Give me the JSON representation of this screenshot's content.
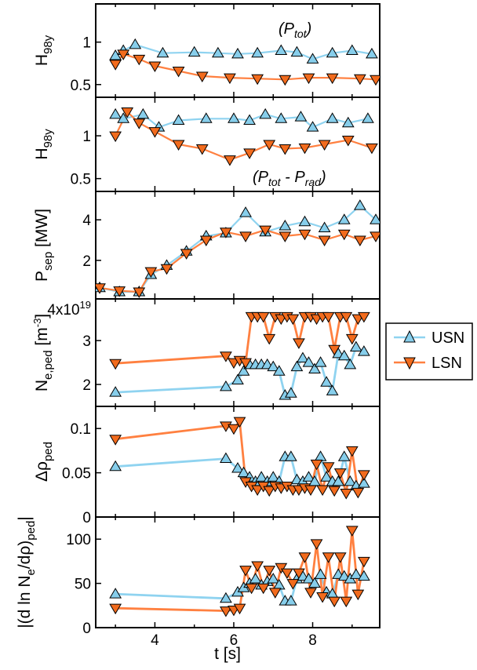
{
  "colors": {
    "usn": "#87ceeb",
    "usn_line": "#8fd3f0",
    "lsn": "#f26b1d",
    "lsn_line": "#ff8040",
    "axis": "#000000"
  },
  "legend": {
    "items": [
      {
        "label": "USN",
        "marker": "triangle-up"
      },
      {
        "label": "LSN",
        "marker": "triangle-down"
      }
    ]
  },
  "xaxis": {
    "label": "t [s]",
    "ticks": [
      "4",
      "6",
      "8"
    ],
    "range": [
      2.5,
      9.7
    ]
  },
  "chart_data": [
    {
      "type": "line",
      "ylabel_html": "H<sub>98y</sub>",
      "ylabel": "H98y",
      "ylabel_sub": "98y",
      "annotation": "(P_tot)",
      "ylim": [
        0.35,
        1.45
      ],
      "yticks": [
        {
          "v": 0.5,
          "t": "0.5"
        },
        {
          "v": 1,
          "t": "1"
        }
      ],
      "series": [
        {
          "name": "USN",
          "x": [
            3.0,
            3.2,
            3.5,
            4.2,
            5.0,
            5.6,
            6.1,
            6.6,
            7.2,
            7.6,
            8.0,
            8.5,
            9.0,
            9.5
          ],
          "values": [
            0.84,
            0.9,
            0.97,
            0.87,
            0.88,
            0.87,
            0.86,
            0.87,
            0.9,
            0.88,
            0.8,
            0.87,
            0.9,
            0.86
          ]
        },
        {
          "name": "LSN",
          "x": [
            3.0,
            3.2,
            3.6,
            4.0,
            4.6,
            5.2,
            5.9,
            6.6,
            7.3,
            7.9,
            8.5,
            9.2,
            9.6
          ],
          "values": [
            0.74,
            0.86,
            0.8,
            0.72,
            0.66,
            0.6,
            0.58,
            0.57,
            0.56,
            0.58,
            0.58,
            0.57,
            0.56
          ]
        }
      ]
    },
    {
      "type": "line",
      "ylabel": "H98y",
      "ylabel_sub": "98y",
      "annotation": "(P_tot - P_rad)",
      "ylim": [
        0.35,
        1.45
      ],
      "yticks": [
        {
          "v": 0.5,
          "t": "0.5"
        },
        {
          "v": 1,
          "t": "1"
        }
      ],
      "series": [
        {
          "name": "USN",
          "x": [
            3.0,
            3.2,
            3.7,
            4.1,
            4.6,
            5.3,
            6.0,
            6.4,
            6.8,
            7.2,
            7.7,
            8.0,
            8.5,
            8.9,
            9.4
          ],
          "values": [
            1.25,
            1.2,
            1.25,
            1.1,
            1.18,
            1.2,
            1.2,
            1.18,
            1.25,
            1.2,
            1.22,
            1.1,
            1.2,
            1.15,
            1.2
          ]
        },
        {
          "name": "LSN",
          "x": [
            3.0,
            3.3,
            3.6,
            4.0,
            4.6,
            5.2,
            5.9,
            6.4,
            6.9,
            7.3,
            7.8,
            8.3,
            8.9,
            9.5
          ],
          "values": [
            1.0,
            1.28,
            1.15,
            1.05,
            0.9,
            0.85,
            0.72,
            0.8,
            0.9,
            0.85,
            0.86,
            0.9,
            0.95,
            0.86
          ]
        }
      ]
    },
    {
      "type": "line",
      "ylabel": "Psep [MW]",
      "ylabel_main": "P",
      "ylabel_sub": "sep",
      "ylabel_tail": " [MW]",
      "ylim": [
        0.1,
        5.4
      ],
      "yticks": [
        {
          "v": 2,
          "t": "2"
        },
        {
          "v": 4,
          "t": "4"
        }
      ],
      "series": [
        {
          "name": "USN",
          "x": [
            2.6,
            3.1,
            3.6,
            3.9,
            4.3,
            4.8,
            5.3,
            5.8,
            6.3,
            6.8,
            7.3,
            7.8,
            8.3,
            8.8,
            9.2,
            9.6
          ],
          "values": [
            0.65,
            0.45,
            0.45,
            1.3,
            1.75,
            2.45,
            3.2,
            3.35,
            4.35,
            3.4,
            3.7,
            3.9,
            3.6,
            4.0,
            4.7,
            4.0
          ]
        },
        {
          "name": "LSN",
          "x": [
            2.6,
            3.1,
            3.6,
            3.9,
            4.3,
            4.8,
            5.3,
            5.8,
            6.3,
            6.8,
            7.3,
            7.8,
            8.3,
            8.8,
            9.2,
            9.6
          ],
          "values": [
            0.65,
            0.5,
            0.45,
            1.45,
            1.6,
            2.35,
            3.0,
            3.4,
            3.2,
            3.5,
            3.2,
            3.3,
            3.0,
            3.3,
            3.0,
            3.2
          ]
        }
      ]
    },
    {
      "type": "line",
      "ylabel": "Ne,ped [m-3]",
      "ylabel_main": "N",
      "ylabel_sub": "e,ped",
      "ylabel_tail": " [m",
      "ylabel_sup": "-3",
      "ylabel_end": "]",
      "ylim": [
        1.5,
        3.95
      ],
      "yticks": [
        {
          "v": 2,
          "t": "2"
        },
        {
          "v": 3,
          "t": "3"
        }
      ],
      "top_tick": {
        "mant": "4x10",
        "exp": "19"
      },
      "series": [
        {
          "name": "USN",
          "x": [
            3.0,
            5.8,
            6.1,
            6.25,
            6.4,
            6.55,
            6.7,
            6.85,
            7.0,
            7.15,
            7.3,
            7.45,
            7.6,
            7.75,
            7.9,
            8.05,
            8.2,
            8.35,
            8.5,
            8.65,
            8.8,
            8.95,
            9.1,
            9.3
          ],
          "values": [
            1.82,
            1.95,
            2.1,
            2.3,
            2.45,
            2.45,
            2.45,
            2.45,
            2.4,
            2.3,
            1.75,
            1.8,
            2.4,
            2.6,
            2.5,
            2.35,
            2.5,
            2.05,
            1.85,
            2.7,
            2.65,
            2.45,
            2.85,
            2.75
          ]
        },
        {
          "name": "LSN",
          "x": [
            3.0,
            5.8,
            6.0,
            6.15,
            6.3,
            6.45,
            6.6,
            6.75,
            6.9,
            7.05,
            7.2,
            7.35,
            7.5,
            7.65,
            7.8,
            7.95,
            8.1,
            8.25,
            8.4,
            8.55,
            8.7,
            8.85,
            9.0,
            9.15,
            9.3
          ],
          "values": [
            2.48,
            2.65,
            2.5,
            2.55,
            2.5,
            3.55,
            3.55,
            3.55,
            3.05,
            3.55,
            3.5,
            3.55,
            3.5,
            2.95,
            3.55,
            3.55,
            3.5,
            3.55,
            3.55,
            2.8,
            3.55,
            3.55,
            3.05,
            3.5,
            3.55
          ]
        }
      ]
    },
    {
      "type": "line",
      "ylabel": "Δρped",
      "ylabel_main": "Δρ",
      "ylabel_sub": "ped",
      "ylim": [
        0,
        0.125
      ],
      "yticks": [
        {
          "v": 0,
          "t": "0"
        },
        {
          "v": 0.05,
          "t": "0.05"
        },
        {
          "v": 0.1,
          "t": "0.1"
        }
      ],
      "series": [
        {
          "name": "USN",
          "x": [
            3.0,
            5.8,
            6.1,
            6.25,
            6.4,
            6.55,
            6.7,
            6.85,
            7.0,
            7.15,
            7.3,
            7.45,
            7.6,
            7.75,
            7.9,
            8.05,
            8.2,
            8.35,
            8.5,
            8.65,
            8.8,
            8.95,
            9.1,
            9.3
          ],
          "values": [
            0.057,
            0.066,
            0.055,
            0.05,
            0.045,
            0.04,
            0.045,
            0.04,
            0.045,
            0.04,
            0.068,
            0.068,
            0.042,
            0.04,
            0.045,
            0.04,
            0.068,
            0.045,
            0.04,
            0.04,
            0.068,
            0.04,
            0.035,
            0.038
          ]
        },
        {
          "name": "LSN",
          "x": [
            3.0,
            5.8,
            6.0,
            6.15,
            6.3,
            6.45,
            6.6,
            6.75,
            6.9,
            7.05,
            7.2,
            7.35,
            7.5,
            7.65,
            7.8,
            7.95,
            8.1,
            8.25,
            8.4,
            8.55,
            8.7,
            8.85,
            9.0,
            9.15,
            9.3
          ],
          "values": [
            0.088,
            0.103,
            0.1,
            0.108,
            0.04,
            0.035,
            0.031,
            0.035,
            0.03,
            0.035,
            0.033,
            0.035,
            0.031,
            0.031,
            0.033,
            0.031,
            0.06,
            0.031,
            0.057,
            0.03,
            0.05,
            0.027,
            0.075,
            0.028,
            0.048
          ]
        }
      ]
    },
    {
      "type": "line",
      "ylabel": "|(d ln Ne/dρ)ped|",
      "ylabel_main": "|(d ln N",
      "ylabel_sub": "e",
      "ylabel_tail": "/dρ)",
      "ylabel_sub2": "ped",
      "ylabel_end": "|",
      "ylim": [
        0,
        125
      ],
      "yticks": [
        {
          "v": 0,
          "t": "0"
        },
        {
          "v": 50,
          "t": "50"
        },
        {
          "v": 100,
          "t": "100"
        }
      ],
      "series": [
        {
          "name": "USN",
          "x": [
            3.0,
            5.8,
            6.1,
            6.25,
            6.4,
            6.55,
            6.7,
            6.85,
            7.0,
            7.15,
            7.3,
            7.45,
            7.6,
            7.75,
            7.9,
            8.05,
            8.2,
            8.35,
            8.5,
            8.65,
            8.8,
            8.95,
            9.1,
            9.3
          ],
          "values": [
            38,
            33,
            40,
            45,
            50,
            55,
            48,
            52,
            55,
            48,
            30,
            30,
            55,
            58,
            55,
            50,
            60,
            40,
            38,
            60,
            58,
            55,
            60,
            58
          ]
        },
        {
          "name": "LSN",
          "x": [
            3.0,
            5.8,
            6.0,
            6.15,
            6.3,
            6.45,
            6.6,
            6.75,
            6.9,
            7.05,
            7.2,
            7.35,
            7.5,
            7.65,
            7.8,
            7.95,
            8.1,
            8.25,
            8.4,
            8.55,
            8.7,
            8.85,
            9.0,
            9.15,
            9.3
          ],
          "values": [
            22,
            19,
            20,
            22,
            65,
            45,
            70,
            45,
            65,
            40,
            68,
            62,
            50,
            62,
            80,
            40,
            95,
            35,
            80,
            30,
            80,
            30,
            110,
            38,
            75
          ]
        }
      ]
    }
  ]
}
